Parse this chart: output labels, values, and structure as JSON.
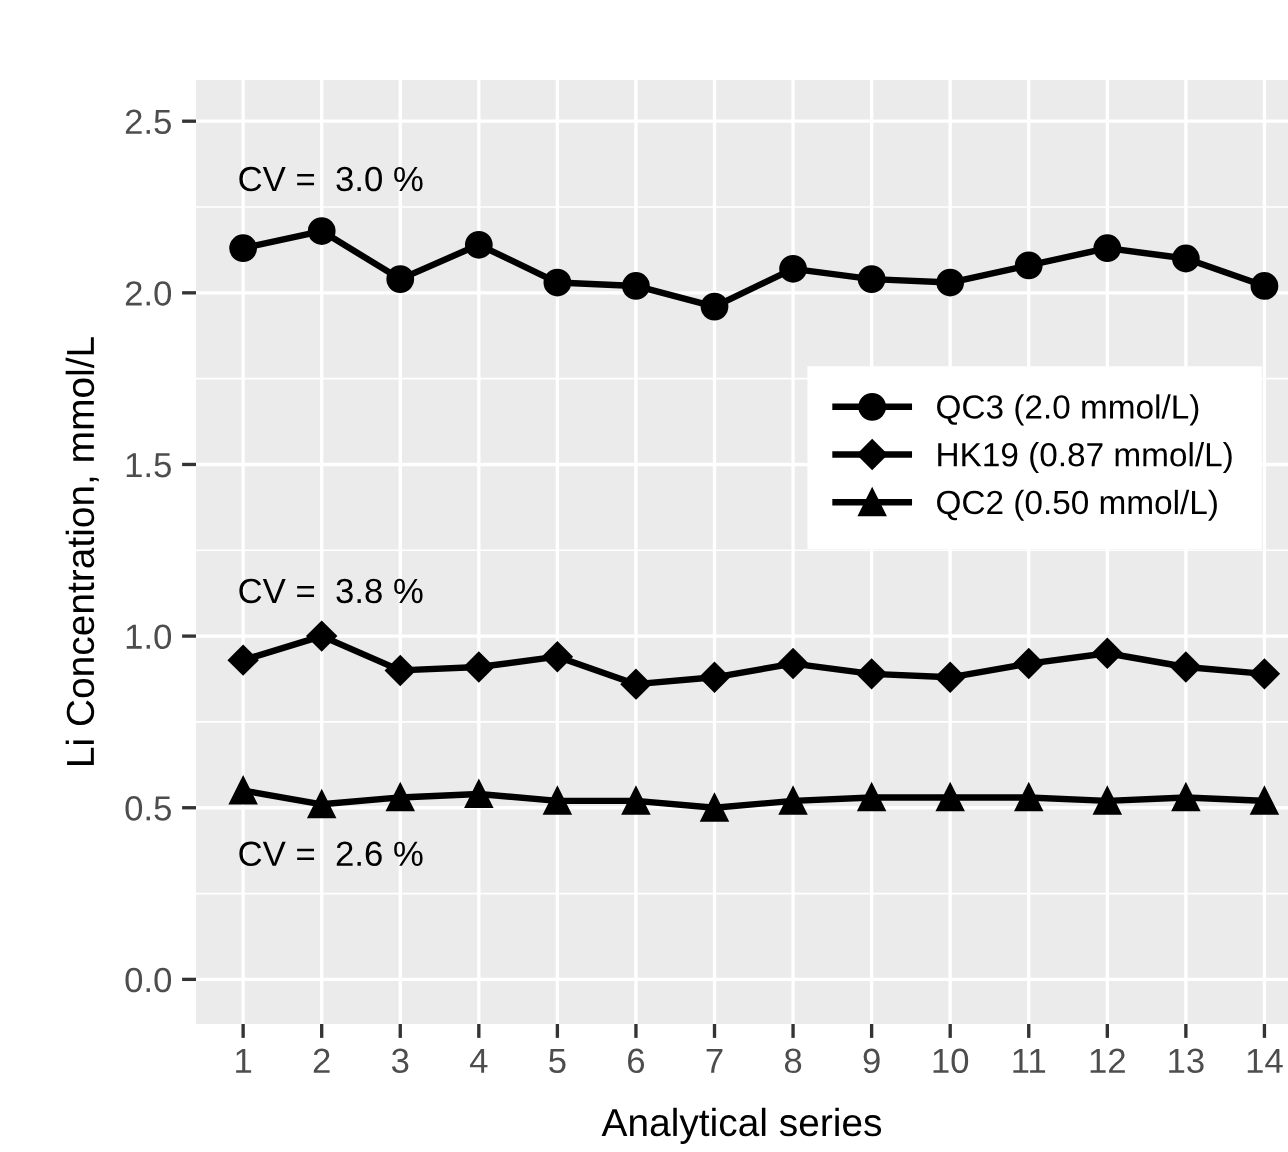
{
  "chart_data": {
    "type": "line",
    "xlabel": "Analytical series",
    "ylabel": "Li Concentration, mmol/L",
    "x": [
      1,
      2,
      3,
      4,
      5,
      6,
      7,
      8,
      9,
      10,
      11,
      12,
      13,
      14
    ],
    "series": [
      {
        "name": "QC3 (2.0 mmol/L)",
        "color": "#000000",
        "marker": "circle",
        "values": [
          2.13,
          2.18,
          2.04,
          2.14,
          2.03,
          2.02,
          1.96,
          2.07,
          2.04,
          2.03,
          2.08,
          2.13,
          2.1,
          2.02
        ]
      },
      {
        "name": "HK19 (0.87 mmol/L)",
        "color": "#000000",
        "marker": "diamond",
        "values": [
          0.93,
          1.0,
          0.9,
          0.91,
          0.94,
          0.86,
          0.88,
          0.92,
          0.89,
          0.88,
          0.92,
          0.95,
          0.91,
          0.89
        ]
      },
      {
        "name": "QC2 (0.50 mmol/L)",
        "color": "#000000",
        "marker": "triangle",
        "values": [
          0.55,
          0.51,
          0.53,
          0.54,
          0.52,
          0.52,
          0.5,
          0.52,
          0.53,
          0.53,
          0.53,
          0.52,
          0.53,
          0.52
        ]
      }
    ],
    "annotations": [
      "CV =  3.0 %",
      "CV =  3.8 %",
      "CV =  2.6 %"
    ],
    "xlim": [
      0.4,
      14.3
    ],
    "ylim": [
      -0.13,
      2.62
    ],
    "xticks": [
      1,
      2,
      3,
      4,
      5,
      6,
      7,
      8,
      9,
      10,
      11,
      12,
      13,
      14
    ],
    "yticks": [
      {
        "value": 0,
        "label": "0.0"
      },
      {
        "value": 0.5,
        "label": "0.5"
      },
      {
        "value": 1,
        "label": "1.0"
      },
      {
        "value": 1.5,
        "label": "1.5"
      },
      {
        "value": 2,
        "label": "2.0"
      },
      {
        "value": 2.5,
        "label": "2.5"
      }
    ],
    "grid": true,
    "legend": "right",
    "line_style": "solid"
  }
}
